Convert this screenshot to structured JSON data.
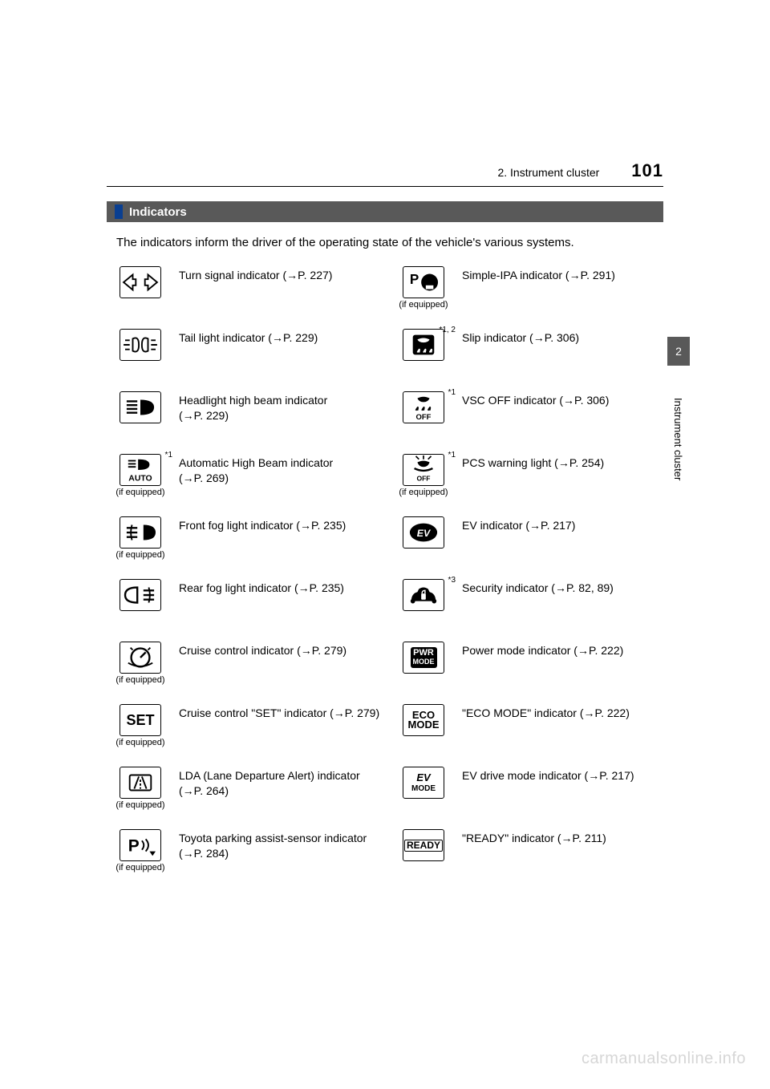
{
  "header": {
    "chapter": "2. Instrument cluster",
    "page_number": "101"
  },
  "section": {
    "title": "Indicators"
  },
  "intro": "The indicators inform the driver of the operating state of the vehicle's various systems.",
  "side_tab": {
    "num": "2",
    "label": "Instrument cluster"
  },
  "watermark": "carmanualsonline.info",
  "equip_label": "(if equipped)",
  "arrow": "→",
  "left": [
    {
      "icon": "turn-signal",
      "if_equipped": false,
      "sup": "",
      "name": "Turn signal indicator",
      "ref": "P. 227"
    },
    {
      "icon": "tail-light",
      "if_equipped": false,
      "sup": "",
      "name": "Tail light indicator",
      "ref": "P. 229"
    },
    {
      "icon": "high-beam",
      "if_equipped": false,
      "sup": "",
      "name": "Headlight high beam indicator",
      "ref": "P. 229"
    },
    {
      "icon": "auto-high-beam",
      "if_equipped": true,
      "sup": "*1",
      "name": "Automatic High Beam indicator",
      "ref": "P. 269"
    },
    {
      "icon": "front-fog",
      "if_equipped": true,
      "sup": "",
      "name": "Front fog light indicator",
      "ref": "P. 235"
    },
    {
      "icon": "rear-fog",
      "if_equipped": false,
      "sup": "",
      "name": "Rear fog light indicator",
      "ref": "P. 235"
    },
    {
      "icon": "cruise",
      "if_equipped": true,
      "sup": "",
      "name": "Cruise control indicator",
      "ref": "P. 279"
    },
    {
      "icon": "cruise-set",
      "if_equipped": true,
      "sup": "",
      "name": "Cruise control \"SET\" indicator",
      "ref": "P. 279"
    },
    {
      "icon": "lda",
      "if_equipped": true,
      "sup": "",
      "name": "LDA (Lane Departure Alert) indicator",
      "ref": "P. 264"
    },
    {
      "icon": "parking-assist",
      "if_equipped": true,
      "sup": "",
      "name": "Toyota parking assist-sensor indicator",
      "ref": "P. 284"
    }
  ],
  "right": [
    {
      "icon": "simple-ipa",
      "if_equipped": true,
      "sup": "",
      "name": "Simple-IPA indicator",
      "ref": "P. 291"
    },
    {
      "icon": "slip",
      "if_equipped": false,
      "sup": "*1, 2",
      "name": "Slip indicator",
      "ref": "P. 306"
    },
    {
      "icon": "vsc-off",
      "if_equipped": false,
      "sup": "*1",
      "name": "VSC OFF indicator",
      "ref": "P. 306"
    },
    {
      "icon": "pcs",
      "if_equipped": true,
      "sup": "*1",
      "name": "PCS warning light",
      "ref": "P. 254"
    },
    {
      "icon": "ev",
      "if_equipped": false,
      "sup": "",
      "name": "EV indicator",
      "ref": "P. 217"
    },
    {
      "icon": "security",
      "if_equipped": false,
      "sup": "*3",
      "name": "Security indicator",
      "ref": "P. 82, 89"
    },
    {
      "icon": "pwr-mode",
      "if_equipped": false,
      "sup": "",
      "name": "Power mode indicator",
      "ref": "P. 222"
    },
    {
      "icon": "eco-mode",
      "if_equipped": false,
      "sup": "",
      "name": "\"ECO MODE\" indicator",
      "ref": "P. 222"
    },
    {
      "icon": "ev-mode",
      "if_equipped": false,
      "sup": "",
      "name": "EV drive mode indicator",
      "ref": "P. 217"
    },
    {
      "icon": "ready",
      "if_equipped": false,
      "sup": "",
      "name": "\"READY\" indicator",
      "ref": "P. 211"
    }
  ],
  "colors": {
    "text": "#000000",
    "bar_bg": "#595959",
    "bar_accent": "#0a3f91",
    "watermark": "#d6d6d6"
  }
}
